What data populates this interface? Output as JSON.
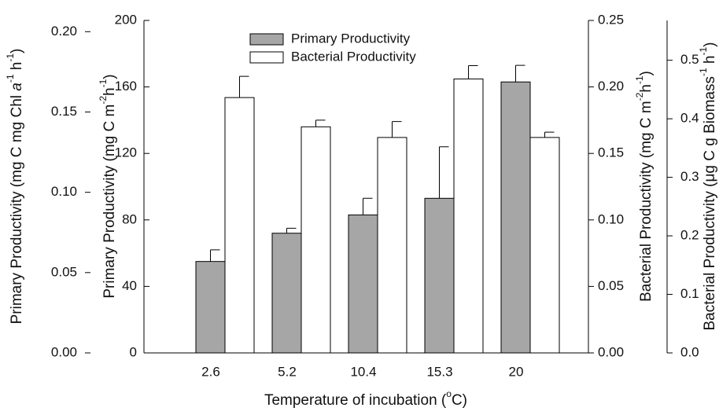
{
  "chart_data": {
    "type": "bar",
    "categories": [
      "2.6",
      "5.2",
      "10.4",
      "15.3",
      "20"
    ],
    "x_label_parts": [
      "Temperature of incubation (",
      "o",
      "C)"
    ],
    "y_label_parts": [
      "Primary Productivity (mg C m",
      "-2",
      "h",
      "-1",
      ")"
    ],
    "y2_label_parts": [
      "Bacterial Productivity (mg C m",
      "-2",
      "h",
      "-1",
      ")"
    ],
    "ylim": [
      0,
      200
    ],
    "yticks": [
      0,
      40,
      80,
      120,
      160,
      200
    ],
    "y2lim": [
      0,
      0.25
    ],
    "y2ticks": [
      {
        "value": 0,
        "label": "0.00"
      },
      {
        "value": 0.05,
        "label": "0.05"
      },
      {
        "value": 0.1,
        "label": "0.10"
      },
      {
        "value": 0.15,
        "label": "0.15"
      },
      {
        "value": 0.2,
        "label": "0.20"
      },
      {
        "value": 0.25,
        "label": "0.25"
      }
    ],
    "extra_axes": [
      {
        "side": "left",
        "label_parts": [
          "Primary Productivity (mg C mg Chl ",
          "a",
          "-1",
          " h",
          "-1",
          ")"
        ],
        "lim": [
          0,
          0.207
        ],
        "ticks": [
          {
            "value": 0,
            "label": "0.00"
          },
          {
            "value": 0.05,
            "label": "0.05"
          },
          {
            "value": 0.1,
            "label": "0.10"
          },
          {
            "value": 0.15,
            "label": "0.15"
          },
          {
            "value": 0.2,
            "label": "0.20"
          }
        ]
      },
      {
        "side": "right",
        "label_parts": [
          "Bacterial Productivity (",
          "μ",
          "g C g Biomass",
          "-1",
          " h",
          "-1",
          ")"
        ],
        "lim": [
          0,
          0.568
        ],
        "ticks": [
          {
            "value": 0,
            "label": "0.0"
          },
          0.1,
          0.2,
          0.3,
          0.4,
          0.5
        ]
      }
    ],
    "series": [
      {
        "name": "Primary Productivity",
        "color": "#a6a6a6",
        "values": [
          55,
          72,
          83,
          93,
          163
        ],
        "errors": [
          7,
          3,
          10,
          31,
          10
        ]
      },
      {
        "name": "Bacterial Productivity",
        "color": "#ffffff",
        "axis": "y2",
        "values": [
          0.192,
          0.17,
          0.162,
          0.206,
          0.162
        ],
        "errors": [
          0.016,
          0.005,
          0.012,
          0.01,
          0.004
        ]
      }
    ],
    "legend": "upper-left"
  }
}
